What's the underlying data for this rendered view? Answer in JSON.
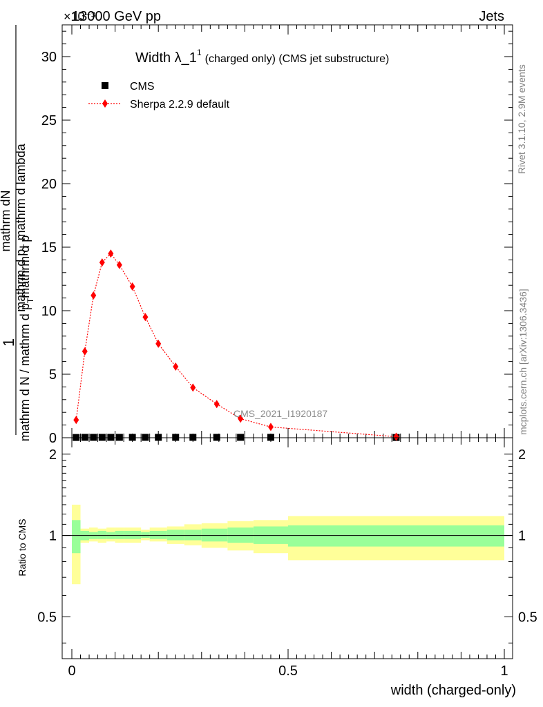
{
  "header": {
    "energy_label": "13000 GeV pp",
    "process_label": "Jets",
    "exponent_label": "×10⁻³"
  },
  "side_text": {
    "rivet": "Rivet 3.1.10,  2.9M events",
    "mcplots": "mcplots.cern.ch [arXiv:1306.3436]"
  },
  "chart_data": [
    {
      "type": "line",
      "title_main": "Width λ_1",
      "title_sup": "1",
      "title_rest": "(charged only) (CMS jet substructure)",
      "analysis_label": "CMS_2021_I1920187",
      "ylabel_top": "1",
      "ylabel_num": "mathrm dN",
      "ylabel_num_b": "mathrm d p",
      "ylabel_num_sub": "T",
      "ylabel_num_c": " mathrm d lambda",
      "ylabel_den_a": "mathrm d N / mathrm d p",
      "ylabel_den_sub": "T",
      "ylabel_den_b": "mathrm d p",
      "ylim": [
        0,
        32.5
      ],
      "xlim": [
        0,
        1
      ],
      "y_ticks": [
        0,
        5,
        10,
        15,
        20,
        25,
        30
      ],
      "y_tick_labels": [
        "0",
        "5",
        "10",
        "15",
        "20",
        "25",
        "30"
      ],
      "legend_position": "top-left",
      "series": [
        {
          "name": "CMS",
          "color": "#000000",
          "marker": "square",
          "x": [
            0.01,
            0.03,
            0.05,
            0.07,
            0.09,
            0.11,
            0.14,
            0.17,
            0.2,
            0.24,
            0.28,
            0.335,
            0.39,
            0.46,
            0.75
          ],
          "y": [
            0.02,
            0.03,
            0.03,
            0.03,
            0.03,
            0.03,
            0.03,
            0.03,
            0.03,
            0.03,
            0.03,
            0.03,
            0.03,
            0.03,
            0.02
          ]
        },
        {
          "name": "Sherpa 2.2.9 default",
          "color": "#ff0000",
          "marker": "diamond",
          "x": [
            0.01,
            0.03,
            0.05,
            0.07,
            0.09,
            0.11,
            0.14,
            0.17,
            0.2,
            0.24,
            0.28,
            0.335,
            0.39,
            0.46,
            0.75
          ],
          "y": [
            1.4,
            6.8,
            11.2,
            13.8,
            14.5,
            13.6,
            11.9,
            9.5,
            7.4,
            5.6,
            3.95,
            2.65,
            1.5,
            0.85,
            0.08
          ]
        }
      ]
    },
    {
      "type": "area",
      "ylabel": "Ratio to CMS",
      "xlabel": "width (charged-only)",
      "ylim": [
        0.35,
        2.3
      ],
      "xlim": [
        0,
        1
      ],
      "y_ticks": [
        0.5,
        1,
        2
      ],
      "y_tick_labels": [
        "0.5",
        "1",
        "2"
      ],
      "x_ticks": [
        0,
        0.5,
        1
      ],
      "x_tick_labels": [
        "0",
        "0.5",
        "1"
      ],
      "reference_line": 1,
      "bin_edges": [
        0,
        0.02,
        0.04,
        0.06,
        0.08,
        0.1,
        0.12,
        0.16,
        0.18,
        0.22,
        0.26,
        0.3,
        0.36,
        0.42,
        0.5,
        1.0
      ],
      "band_inner": {
        "color": "#99ff99",
        "lo": [
          0.86,
          0.96,
          0.97,
          0.97,
          0.97,
          0.97,
          0.97,
          0.98,
          0.97,
          0.96,
          0.96,
          0.95,
          0.94,
          0.93,
          0.91
        ],
        "hi": [
          1.14,
          1.04,
          1.03,
          1.04,
          1.03,
          1.04,
          1.04,
          1.03,
          1.04,
          1.05,
          1.05,
          1.06,
          1.07,
          1.08,
          1.09
        ]
      },
      "band_outer": {
        "color": "#ffff99",
        "lo": [
          0.66,
          0.94,
          0.95,
          0.94,
          0.95,
          0.94,
          0.94,
          0.96,
          0.95,
          0.93,
          0.92,
          0.9,
          0.88,
          0.86,
          0.81
        ],
        "hi": [
          1.3,
          1.06,
          1.07,
          1.06,
          1.07,
          1.07,
          1.07,
          1.05,
          1.07,
          1.08,
          1.1,
          1.11,
          1.13,
          1.14,
          1.18
        ]
      }
    }
  ]
}
